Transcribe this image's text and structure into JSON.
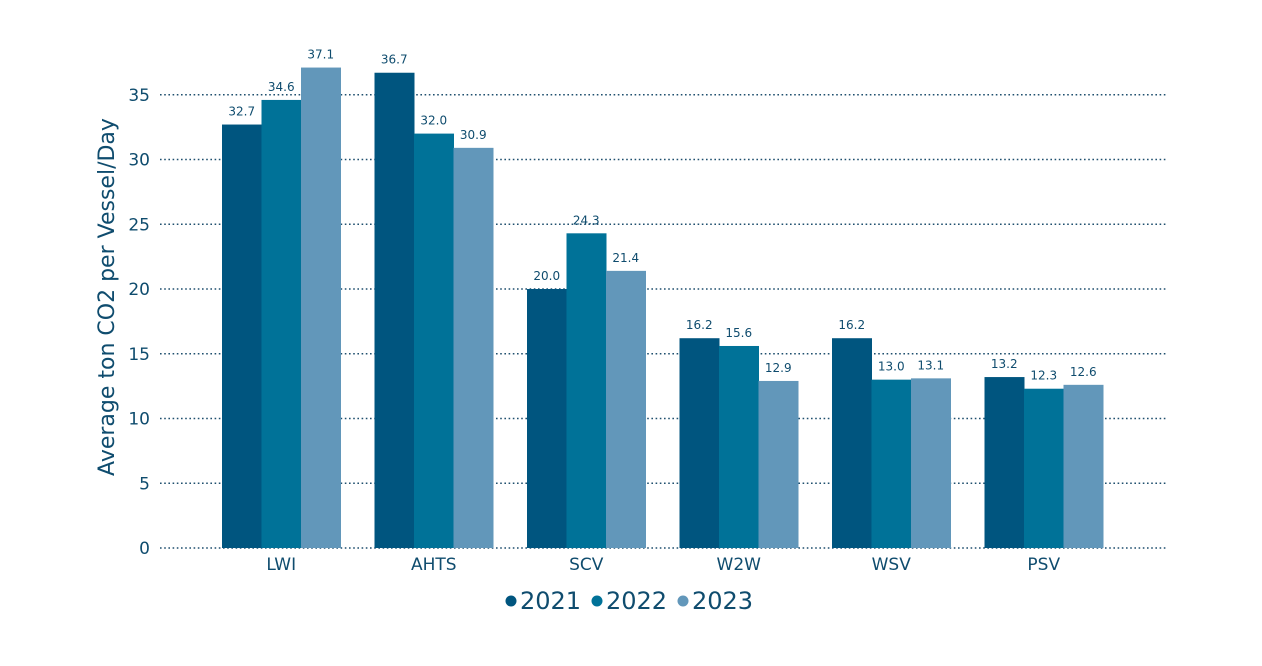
{
  "chart_data": {
    "type": "bar",
    "ylabel": "Average ton CO2 per Vessel/Day",
    "xlabel": "",
    "ylim": [
      0,
      37.5
    ],
    "yticks": [
      0,
      5,
      10,
      15,
      20,
      25,
      30,
      35
    ],
    "grid": true,
    "legend_position": "bottom",
    "categories": [
      "LWI",
      "AHTS",
      "SCV",
      "W2W",
      "WSV",
      "PSV"
    ],
    "series": [
      {
        "name": "2021",
        "color": "#00557f",
        "values": [
          32.7,
          36.7,
          20.0,
          16.2,
          16.2,
          13.2
        ],
        "labels": [
          "32.7",
          "36.7",
          "20.0",
          "16.2",
          "16.2",
          "13.2"
        ]
      },
      {
        "name": "2022",
        "color": "#007298",
        "values": [
          34.6,
          32.0,
          24.3,
          15.6,
          13.0,
          12.3
        ],
        "labels": [
          "34.6",
          "32.0",
          "24.3",
          "15.6",
          "13.0",
          "12.3"
        ]
      },
      {
        "name": "2023",
        "color": "#6297ba",
        "values": [
          37.1,
          30.9,
          21.4,
          12.9,
          13.1,
          12.6
        ],
        "labels": [
          "37.1",
          "30.9",
          "21.4",
          "12.9",
          "13.1",
          "12.6"
        ]
      }
    ],
    "text_color": "#0f4c6e",
    "grid_color": "#1f4f6e"
  }
}
